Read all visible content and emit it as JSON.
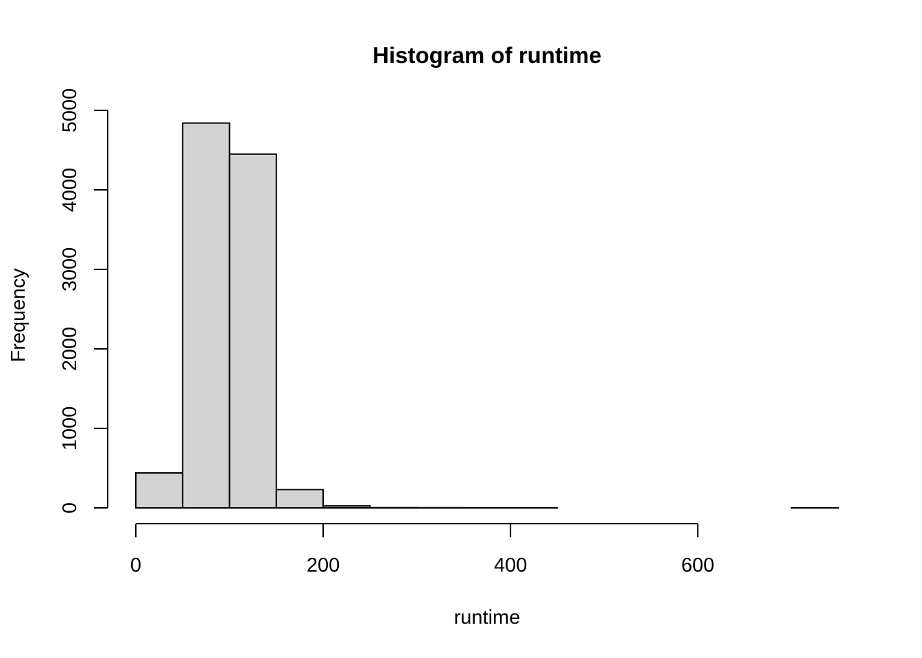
{
  "chart_data": {
    "type": "bar",
    "title": "Histogram of runtime",
    "xlabel": "runtime",
    "ylabel": "Frequency",
    "bin_edges": [
      0,
      50,
      100,
      150,
      200,
      250,
      300,
      350,
      400,
      450,
      500,
      550,
      600,
      650,
      700,
      750
    ],
    "values": [
      440,
      4840,
      4450,
      230,
      25,
      3,
      2,
      1,
      1,
      0,
      0,
      0,
      0,
      0,
      1
    ],
    "xlim": [
      0,
      750
    ],
    "ylim": [
      0,
      5000
    ],
    "x_ticks": [
      0,
      200,
      400,
      600
    ],
    "y_ticks": [
      0,
      1000,
      2000,
      3000,
      4000,
      5000
    ],
    "x_tick_labels": [
      "0",
      "200",
      "400",
      "600"
    ],
    "y_tick_labels": [
      "0",
      "1000",
      "2000",
      "3000",
      "4000",
      "5000"
    ],
    "grid": false,
    "colors": {
      "bar_fill": "#d3d3d3",
      "bar_stroke": "#000000"
    }
  }
}
